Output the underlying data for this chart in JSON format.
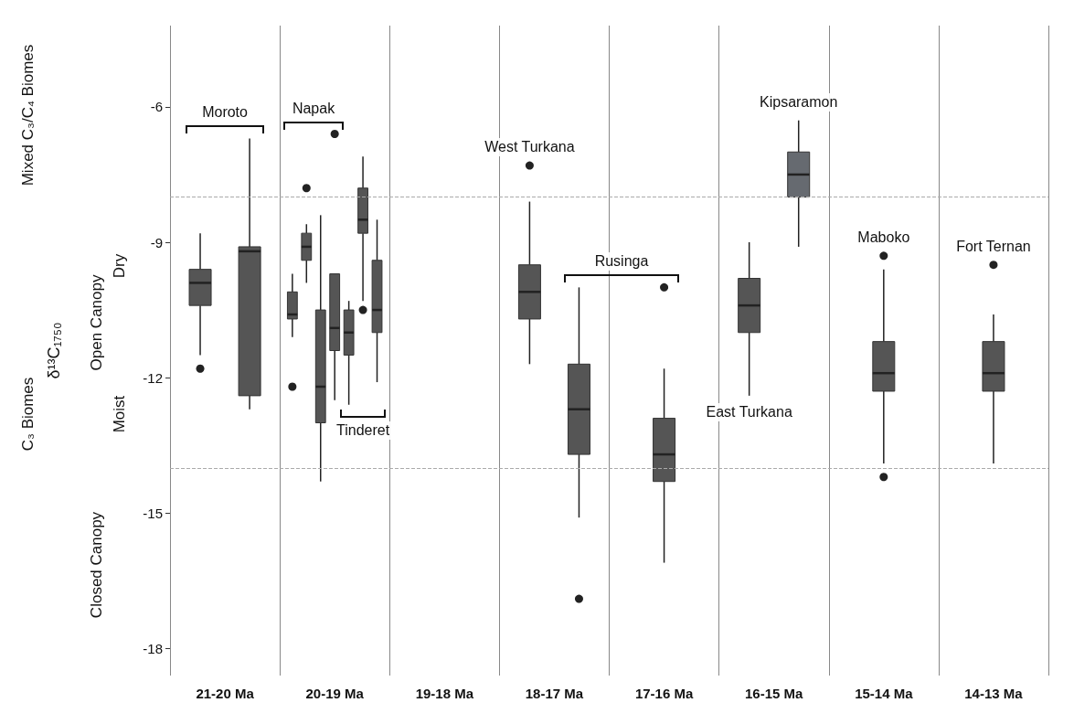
{
  "chart_data": {
    "type": "box",
    "ylabel": "δ¹³C₁₇₅₀",
    "categories": [
      "21-20 Ma",
      "20-19 Ma",
      "19-18 Ma",
      "18-17 Ma",
      "17-16 Ma",
      "16-15 Ma",
      "15-14 Ma",
      "14-13 Ma"
    ],
    "series": [
      {
        "color": "#555555",
        "boxes": [
          {
            "low": -11.5,
            "q1": -10.4,
            "median": -9.9,
            "q3": -9.6,
            "high": -8.8,
            "outliers": [
              -11.8
            ]
          },
          null,
          null,
          null,
          null,
          null,
          null,
          null
        ]
      },
      {
        "color": "#555555",
        "boxes": [
          {
            "low": -12.7,
            "q1": -12.4,
            "median": -9.2,
            "q3": -9.1,
            "high": -6.7
          },
          null,
          null,
          null,
          null,
          null,
          null,
          null
        ]
      },
      {
        "color": "#555555",
        "boxes": [
          null,
          {
            "low": -11.1,
            "q1": -10.7,
            "median": -10.6,
            "q3": -10.1,
            "high": -9.7,
            "outliers": [
              -12.2
            ]
          },
          null,
          null,
          null,
          null,
          null,
          null
        ]
      },
      {
        "color": "#555555",
        "boxes": [
          null,
          {
            "low": -9.9,
            "q1": -9.4,
            "median": -9.1,
            "q3": -8.8,
            "high": -8.6,
            "outliers": [
              -7.8
            ]
          },
          null,
          null,
          null,
          null,
          null,
          null
        ]
      },
      {
        "color": "#555555",
        "boxes": [
          null,
          {
            "low": -14.3,
            "q1": -13.0,
            "median": -12.2,
            "q3": -10.5,
            "high": -8.4
          },
          null,
          null,
          null,
          null,
          null,
          null
        ]
      },
      {
        "color": "#555555",
        "boxes": [
          null,
          {
            "low": -12.5,
            "q1": -11.4,
            "median": -10.9,
            "q3": -9.7,
            "high": -9.7,
            "outliers": [
              -6.6
            ]
          },
          null,
          null,
          null,
          null,
          null,
          null
        ]
      },
      {
        "color": "#555555",
        "boxes": [
          null,
          {
            "low": -12.6,
            "q1": -11.5,
            "median": -11.0,
            "q3": -10.5,
            "high": -10.3
          },
          null,
          null,
          null,
          null,
          null,
          null
        ]
      },
      {
        "color": "#555555",
        "boxes": [
          null,
          {
            "low": -10.3,
            "q1": -8.8,
            "median": -8.5,
            "q3": -7.8,
            "high": -7.1,
            "outliers": [
              -10.5
            ]
          },
          null,
          null,
          null,
          null,
          null,
          null
        ]
      },
      {
        "color": "#555555",
        "boxes": [
          null,
          {
            "low": -12.1,
            "q1": -11.0,
            "median": -10.5,
            "q3": -9.4,
            "high": -8.5
          },
          null,
          null,
          null,
          null,
          null,
          null
        ]
      },
      {
        "color": "#555555",
        "boxes": [
          null,
          null,
          null,
          {
            "low": -11.7,
            "q1": -10.7,
            "median": -10.1,
            "q3": -9.5,
            "high": -8.1,
            "outliers": [
              -7.3
            ]
          },
          null,
          null,
          null,
          null
        ]
      },
      {
        "color": "#555555",
        "boxes": [
          null,
          null,
          null,
          {
            "low": -15.1,
            "q1": -13.7,
            "median": -12.7,
            "q3": -11.7,
            "high": -10.0,
            "outliers": [
              -16.9
            ]
          },
          null,
          null,
          null,
          null
        ]
      },
      {
        "color": "#555555",
        "boxes": [
          null,
          null,
          null,
          null,
          {
            "low": -16.1,
            "q1": -14.3,
            "median": -13.7,
            "q3": -12.9,
            "high": -11.8,
            "outliers": [
              -10.0
            ]
          },
          null,
          null,
          null
        ]
      },
      {
        "color": "#555555",
        "boxes": [
          null,
          null,
          null,
          null,
          null,
          {
            "low": -12.4,
            "q1": -11.0,
            "median": -10.4,
            "q3": -9.8,
            "high": -9.0
          },
          null,
          null
        ]
      },
      {
        "color": "#666a70",
        "boxes": [
          null,
          null,
          null,
          null,
          null,
          {
            "low": -9.1,
            "q1": -8.0,
            "median": -7.5,
            "q3": -7.0,
            "high": -6.3
          },
          null,
          null
        ]
      },
      {
        "color": "#555555",
        "boxes": [
          null,
          null,
          null,
          null,
          null,
          null,
          {
            "low": -13.9,
            "q1": -12.3,
            "median": -11.9,
            "q3": -11.2,
            "high": -9.6,
            "outliers": [
              -9.3,
              -14.2
            ]
          },
          null
        ]
      },
      {
        "color": "#555555",
        "boxes": [
          null,
          null,
          null,
          null,
          null,
          null,
          null,
          {
            "low": -13.9,
            "q1": -12.3,
            "median": -11.9,
            "q3": -11.2,
            "high": -10.6,
            "outliers": [
              -9.5
            ]
          }
        ]
      }
    ],
    "ylim": [
      -18.6,
      -4.2
    ],
    "yticks": [
      -6,
      -9,
      -12,
      -15,
      -18
    ],
    "grid": "x",
    "ref_lines": [
      {
        "axis": "y",
        "value": -8,
        "color": "#aaaaaa",
        "line_style": "dashed"
      },
      {
        "axis": "y",
        "value": -14,
        "color": "#aaaaaa",
        "line_style": "dashed"
      }
    ],
    "annotations": [
      "Mixed C₃/C₄ Biomes",
      "C₃ Biomes",
      "Dry",
      "Open Canopy",
      "Moist",
      "Closed Canopy",
      "Moroto",
      "Napak",
      "Tinderet",
      "West Turkana",
      "Rusinga",
      "East Turkana",
      "Kipsaramon",
      "Maboko",
      "Fort Ternan"
    ]
  }
}
